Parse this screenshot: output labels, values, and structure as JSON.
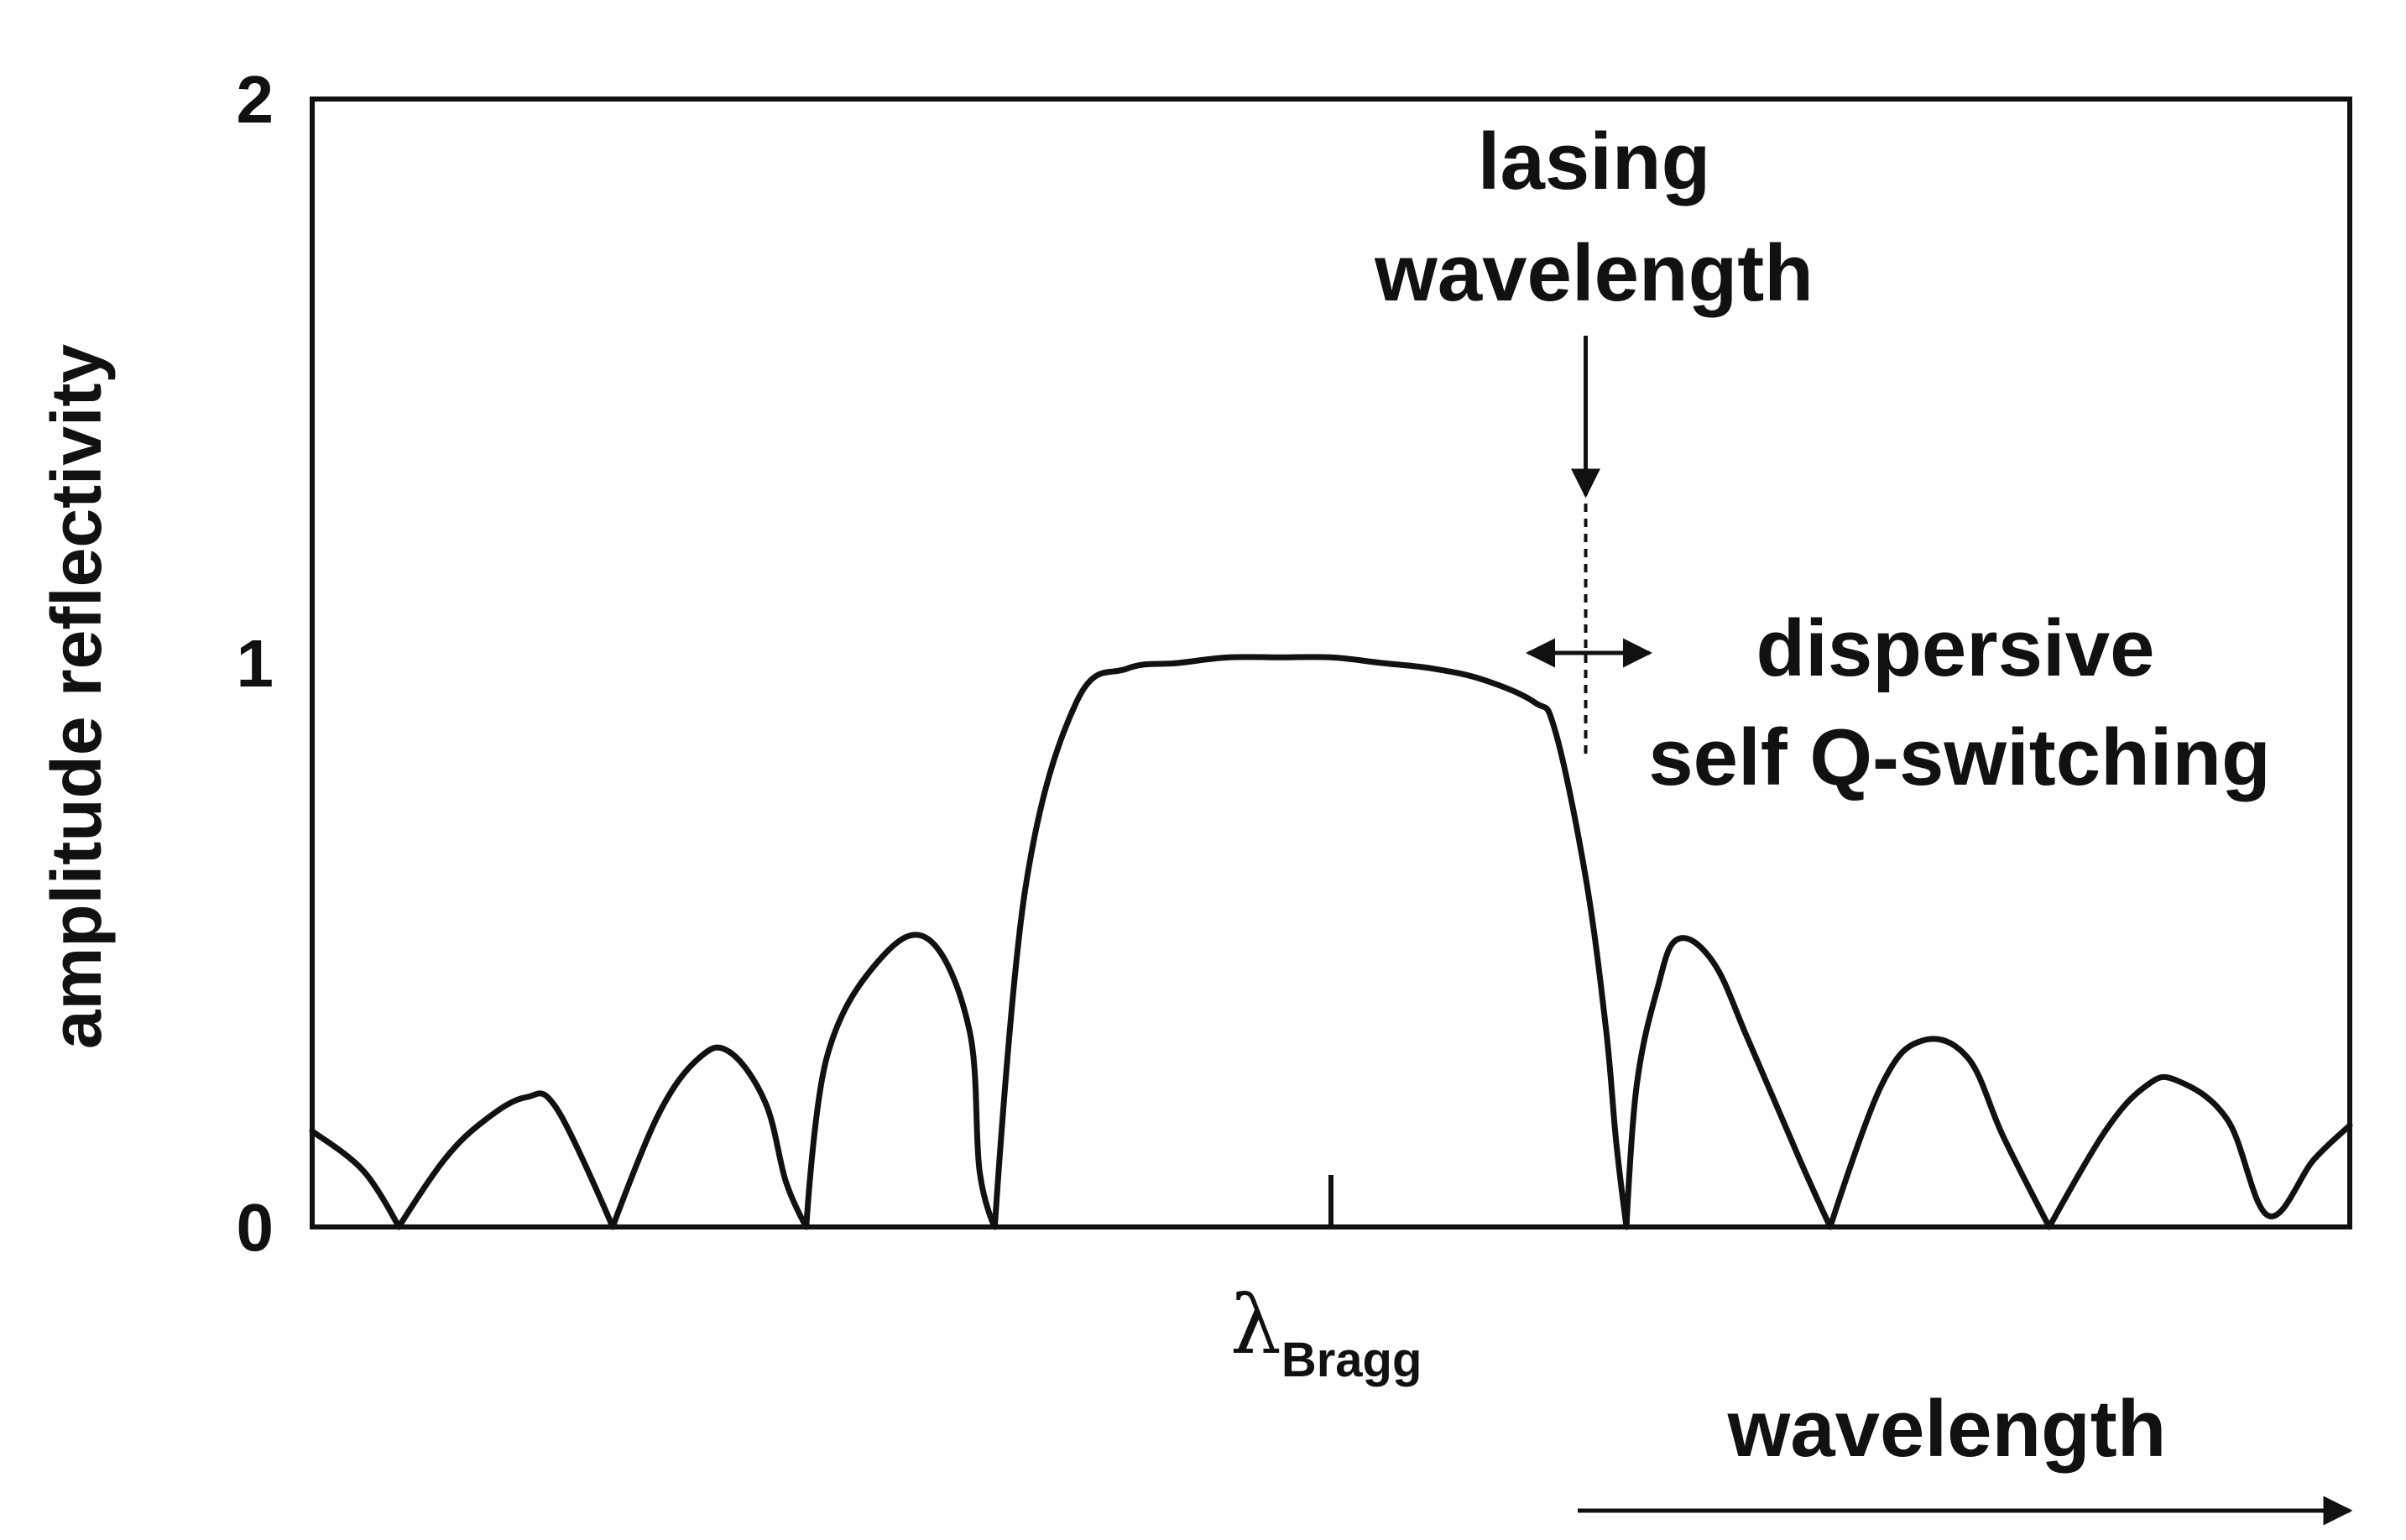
{
  "chart_data": {
    "type": "line",
    "title": "",
    "xlabel": "wavelength",
    "ylabel": "amplitude reflectivity",
    "xlim": [
      -1.0,
      1.0
    ],
    "ylim": [
      0,
      2
    ],
    "y_ticks": [
      "0",
      "1",
      "2"
    ],
    "x_tick_label": "λ",
    "x_tick_label_sub": "Bragg",
    "x_tick_value": 0.0,
    "grid": false,
    "legend": "none",
    "line_color": "#111111",
    "series": [
      {
        "x": [
          -1.0,
          -0.95,
          -0.915,
          -0.87,
          -0.83,
          -0.79,
          -0.76,
          -0.705,
          -0.66,
          -0.62,
          -0.59,
          -0.555,
          -0.535,
          -0.515,
          -0.495,
          -0.445,
          -0.395,
          -0.355,
          -0.345,
          -0.33,
          -0.3,
          -0.25,
          -0.2,
          -0.15,
          -0.1,
          -0.05,
          0.0,
          0.05,
          0.1,
          0.15,
          0.2,
          0.22,
          0.25,
          0.27,
          0.28,
          0.29,
          0.3,
          0.32,
          0.34,
          0.375,
          0.41,
          0.46,
          0.49,
          0.54,
          0.58,
          0.625,
          0.66,
          0.705,
          0.76,
          0.8,
          0.83,
          0.88,
          0.92,
          0.965,
          1.0
        ],
        "y": [
          0.17,
          0.1,
          0.0,
          0.12,
          0.19,
          0.23,
          0.21,
          0.0,
          0.2,
          0.3,
          0.31,
          0.22,
          0.08,
          0.0,
          0.3,
          0.47,
          0.51,
          0.35,
          0.1,
          0.0,
          0.6,
          0.93,
          0.99,
          1.0,
          1.01,
          1.01,
          1.01,
          1.0,
          0.99,
          0.97,
          0.93,
          0.88,
          0.62,
          0.35,
          0.15,
          0.0,
          0.25,
          0.42,
          0.51,
          0.47,
          0.33,
          0.12,
          0.0,
          0.25,
          0.33,
          0.3,
          0.16,
          0.0,
          0.17,
          0.25,
          0.26,
          0.19,
          0.02,
          0.12,
          0.18
        ]
      }
    ],
    "annotations": [
      {
        "text": "lasing",
        "type": "label"
      },
      {
        "text": "wavelength",
        "type": "label"
      },
      {
        "text": "dispersive",
        "type": "label"
      },
      {
        "text": "self Q-switching",
        "type": "label"
      }
    ],
    "lasing_x": 0.25
  }
}
